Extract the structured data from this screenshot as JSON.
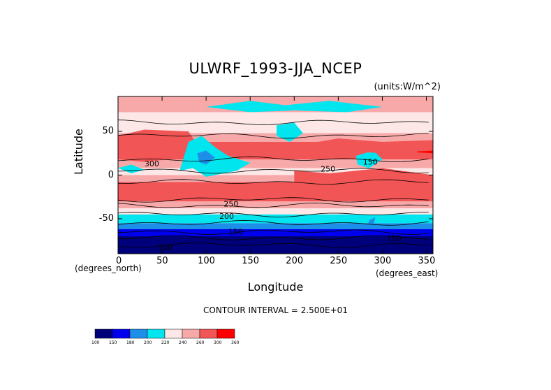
{
  "chart_data": {
    "type": "heatmap",
    "title": "ULWRF_1993-JJA_NCEP",
    "units": "(units:W/m^2)",
    "xlabel": "Longitude",
    "ylabel": "Latitude",
    "xunit": "(degrees_east)",
    "yunit": "(degrees_north)",
    "xlim": [
      0,
      357.5
    ],
    "ylim": [
      -90,
      90
    ],
    "xticks": [
      "0",
      "50",
      "100",
      "150",
      "200",
      "250",
      "300",
      "350"
    ],
    "yticks": [
      "50",
      "0",
      "-50"
    ],
    "contour_note": "CONTOUR INTERVAL = 2.500E+01",
    "contour_labels": [
      "300",
      "150",
      "250",
      "250",
      "200",
      "150",
      "150",
      "100"
    ],
    "colorbar": {
      "levels": [
        "100",
        "150",
        "180",
        "200",
        "220",
        "240",
        "260",
        "300",
        "360"
      ],
      "colors": [
        "#00007a",
        "#0000ee",
        "#1e8fe8",
        "#00e5ee",
        "#fde7e7",
        "#f7a9a9",
        "#f25555",
        "#ff0000"
      ]
    }
  }
}
